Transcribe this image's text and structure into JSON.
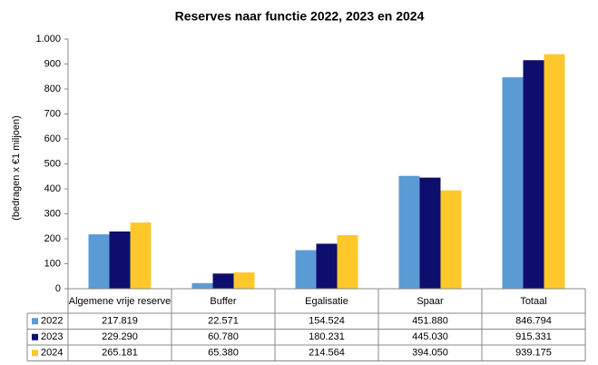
{
  "chart_data": {
    "type": "bar",
    "title": "Reserves naar functie 2022, 2023  en 2024",
    "y_label": "(bedragen x €1 miljoen)",
    "categories": [
      "Algemene vrije reserve",
      "Buffer",
      "Egalisatie",
      "Spaar",
      "Totaal"
    ],
    "series": [
      {
        "name": "2022",
        "color": "#5b9bd5",
        "values": [
          217.819,
          22.571,
          154.524,
          451.88,
          846.794
        ],
        "value_labels": [
          "217.819",
          "22.571",
          "154.524",
          "451.880",
          "846.794"
        ]
      },
      {
        "name": "2023",
        "color": "#0e0e6e",
        "values": [
          229.29,
          60.78,
          180.231,
          445.03,
          915.331
        ],
        "value_labels": [
          "229.290",
          "60.780",
          "180.231",
          "445.030",
          "915.331"
        ]
      },
      {
        "name": "2024",
        "color": "#ffc82a",
        "values": [
          265.181,
          65.38,
          214.564,
          394.05,
          939.175
        ],
        "value_labels": [
          "265.181",
          "65.380",
          "214.564",
          "394.050",
          "939.175"
        ]
      }
    ],
    "ylim": [
      0,
      1000
    ],
    "yticks": [
      0,
      100,
      200,
      300,
      400,
      500,
      600,
      700,
      800,
      900,
      {
        "value": 1000,
        "label": "1.000"
      }
    ],
    "grid": false,
    "legend": "table"
  }
}
